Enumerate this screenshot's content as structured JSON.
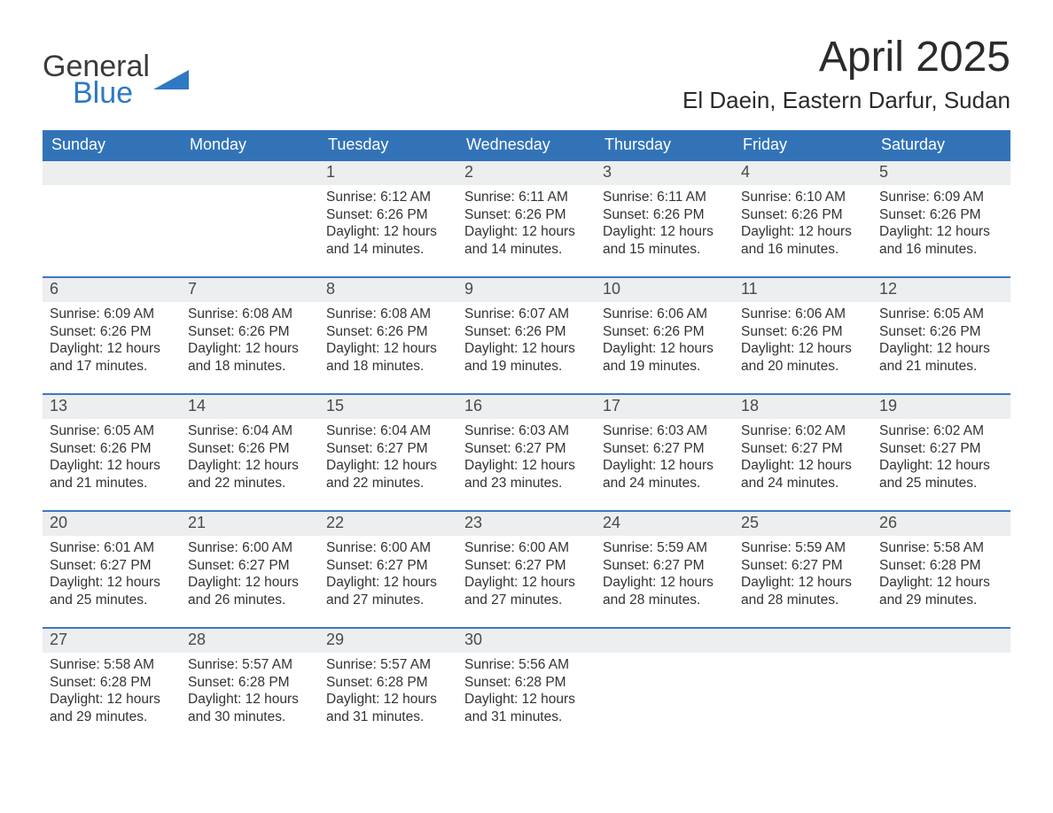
{
  "colors": {
    "header_bg": "#3273b8",
    "header_text": "#ffffff",
    "week_border": "#3f79bd",
    "daynum_bg": "#eceeef",
    "logo_blue": "#2f78c4",
    "body_text": "#333333",
    "page_bg": "#ffffff"
  },
  "typography": {
    "month_title_fontsize": 48,
    "location_fontsize": 26,
    "dow_fontsize": 18,
    "daynum_fontsize": 18,
    "body_fontsize": 15.5,
    "font_family": "Arial"
  },
  "logo": {
    "line1": "General",
    "line2": "Blue"
  },
  "title": "April 2025",
  "location": "El Daein, Eastern Darfur, Sudan",
  "days_of_week": [
    "Sunday",
    "Monday",
    "Tuesday",
    "Wednesday",
    "Thursday",
    "Friday",
    "Saturday"
  ],
  "weeks": [
    [
      {
        "empty": true
      },
      {
        "empty": true
      },
      {
        "num": "1",
        "sunrise": "Sunrise: 6:12 AM",
        "sunset": "Sunset: 6:26 PM",
        "daylight": "Daylight: 12 hours and 14 minutes."
      },
      {
        "num": "2",
        "sunrise": "Sunrise: 6:11 AM",
        "sunset": "Sunset: 6:26 PM",
        "daylight": "Daylight: 12 hours and 14 minutes."
      },
      {
        "num": "3",
        "sunrise": "Sunrise: 6:11 AM",
        "sunset": "Sunset: 6:26 PM",
        "daylight": "Daylight: 12 hours and 15 minutes."
      },
      {
        "num": "4",
        "sunrise": "Sunrise: 6:10 AM",
        "sunset": "Sunset: 6:26 PM",
        "daylight": "Daylight: 12 hours and 16 minutes."
      },
      {
        "num": "5",
        "sunrise": "Sunrise: 6:09 AM",
        "sunset": "Sunset: 6:26 PM",
        "daylight": "Daylight: 12 hours and 16 minutes."
      }
    ],
    [
      {
        "num": "6",
        "sunrise": "Sunrise: 6:09 AM",
        "sunset": "Sunset: 6:26 PM",
        "daylight": "Daylight: 12 hours and 17 minutes."
      },
      {
        "num": "7",
        "sunrise": "Sunrise: 6:08 AM",
        "sunset": "Sunset: 6:26 PM",
        "daylight": "Daylight: 12 hours and 18 minutes."
      },
      {
        "num": "8",
        "sunrise": "Sunrise: 6:08 AM",
        "sunset": "Sunset: 6:26 PM",
        "daylight": "Daylight: 12 hours and 18 minutes."
      },
      {
        "num": "9",
        "sunrise": "Sunrise: 6:07 AM",
        "sunset": "Sunset: 6:26 PM",
        "daylight": "Daylight: 12 hours and 19 minutes."
      },
      {
        "num": "10",
        "sunrise": "Sunrise: 6:06 AM",
        "sunset": "Sunset: 6:26 PM",
        "daylight": "Daylight: 12 hours and 19 minutes."
      },
      {
        "num": "11",
        "sunrise": "Sunrise: 6:06 AM",
        "sunset": "Sunset: 6:26 PM",
        "daylight": "Daylight: 12 hours and 20 minutes."
      },
      {
        "num": "12",
        "sunrise": "Sunrise: 6:05 AM",
        "sunset": "Sunset: 6:26 PM",
        "daylight": "Daylight: 12 hours and 21 minutes."
      }
    ],
    [
      {
        "num": "13",
        "sunrise": "Sunrise: 6:05 AM",
        "sunset": "Sunset: 6:26 PM",
        "daylight": "Daylight: 12 hours and 21 minutes."
      },
      {
        "num": "14",
        "sunrise": "Sunrise: 6:04 AM",
        "sunset": "Sunset: 6:26 PM",
        "daylight": "Daylight: 12 hours and 22 minutes."
      },
      {
        "num": "15",
        "sunrise": "Sunrise: 6:04 AM",
        "sunset": "Sunset: 6:27 PM",
        "daylight": "Daylight: 12 hours and 22 minutes."
      },
      {
        "num": "16",
        "sunrise": "Sunrise: 6:03 AM",
        "sunset": "Sunset: 6:27 PM",
        "daylight": "Daylight: 12 hours and 23 minutes."
      },
      {
        "num": "17",
        "sunrise": "Sunrise: 6:03 AM",
        "sunset": "Sunset: 6:27 PM",
        "daylight": "Daylight: 12 hours and 24 minutes."
      },
      {
        "num": "18",
        "sunrise": "Sunrise: 6:02 AM",
        "sunset": "Sunset: 6:27 PM",
        "daylight": "Daylight: 12 hours and 24 minutes."
      },
      {
        "num": "19",
        "sunrise": "Sunrise: 6:02 AM",
        "sunset": "Sunset: 6:27 PM",
        "daylight": "Daylight: 12 hours and 25 minutes."
      }
    ],
    [
      {
        "num": "20",
        "sunrise": "Sunrise: 6:01 AM",
        "sunset": "Sunset: 6:27 PM",
        "daylight": "Daylight: 12 hours and 25 minutes."
      },
      {
        "num": "21",
        "sunrise": "Sunrise: 6:00 AM",
        "sunset": "Sunset: 6:27 PM",
        "daylight": "Daylight: 12 hours and 26 minutes."
      },
      {
        "num": "22",
        "sunrise": "Sunrise: 6:00 AM",
        "sunset": "Sunset: 6:27 PM",
        "daylight": "Daylight: 12 hours and 27 minutes."
      },
      {
        "num": "23",
        "sunrise": "Sunrise: 6:00 AM",
        "sunset": "Sunset: 6:27 PM",
        "daylight": "Daylight: 12 hours and 27 minutes."
      },
      {
        "num": "24",
        "sunrise": "Sunrise: 5:59 AM",
        "sunset": "Sunset: 6:27 PM",
        "daylight": "Daylight: 12 hours and 28 minutes."
      },
      {
        "num": "25",
        "sunrise": "Sunrise: 5:59 AM",
        "sunset": "Sunset: 6:27 PM",
        "daylight": "Daylight: 12 hours and 28 minutes."
      },
      {
        "num": "26",
        "sunrise": "Sunrise: 5:58 AM",
        "sunset": "Sunset: 6:28 PM",
        "daylight": "Daylight: 12 hours and 29 minutes."
      }
    ],
    [
      {
        "num": "27",
        "sunrise": "Sunrise: 5:58 AM",
        "sunset": "Sunset: 6:28 PM",
        "daylight": "Daylight: 12 hours and 29 minutes."
      },
      {
        "num": "28",
        "sunrise": "Sunrise: 5:57 AM",
        "sunset": "Sunset: 6:28 PM",
        "daylight": "Daylight: 12 hours and 30 minutes."
      },
      {
        "num": "29",
        "sunrise": "Sunrise: 5:57 AM",
        "sunset": "Sunset: 6:28 PM",
        "daylight": "Daylight: 12 hours and 31 minutes."
      },
      {
        "num": "30",
        "sunrise": "Sunrise: 5:56 AM",
        "sunset": "Sunset: 6:28 PM",
        "daylight": "Daylight: 12 hours and 31 minutes."
      },
      {
        "empty": true
      },
      {
        "empty": true
      },
      {
        "empty": true
      }
    ]
  ]
}
